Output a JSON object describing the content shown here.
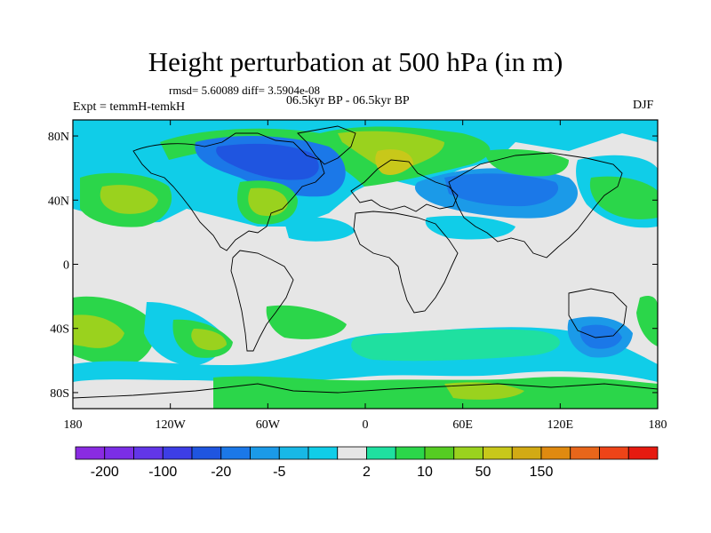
{
  "title": "Height perturbation at 500 hPa (in m)",
  "stats": "rmsd= 5.60089 diff= 3.5904e-08",
  "experiment": "Expt = temmH-temkH",
  "period": "06.5kyr BP - 06.5kyr BP",
  "season": "DJF",
  "map": {
    "type": "filled-contour",
    "projection": "cylindrical-equidistant",
    "lon_range": [
      -180,
      180
    ],
    "lat_range": [
      -90,
      90
    ],
    "y_ticks": [
      {
        "lat": 80,
        "label": "80N"
      },
      {
        "lat": 40,
        "label": "40N"
      },
      {
        "lat": 0,
        "label": "0"
      },
      {
        "lat": -40,
        "label": "40S"
      },
      {
        "lat": -80,
        "label": "80S"
      }
    ],
    "x_ticks": [
      {
        "lon": -180,
        "label": "180"
      },
      {
        "lon": -120,
        "label": "120W"
      },
      {
        "lon": -60,
        "label": "60W"
      },
      {
        "lon": 0,
        "label": "0"
      },
      {
        "lon": 60,
        "label": "60E"
      },
      {
        "lon": 120,
        "label": "120E"
      },
      {
        "lon": 180,
        "label": "180"
      }
    ]
  },
  "colorbar": {
    "colors": [
      "#8a2be2",
      "#7b2ee6",
      "#6236e8",
      "#3d3ee6",
      "#1f55e0",
      "#1b78e8",
      "#1b9ae8",
      "#18b8e6",
      "#10cde8",
      "#e6e6e6",
      "#1fe0a0",
      "#2bd64a",
      "#55cc22",
      "#9ad21e",
      "#c8c81a",
      "#d2aa14",
      "#e08a10",
      "#e8661a",
      "#ee4418",
      "#e61a10"
    ],
    "labels": [
      {
        "boundary": 1,
        "text": "-200"
      },
      {
        "boundary": 3,
        "text": "-100"
      },
      {
        "boundary": 5,
        "text": "-20"
      },
      {
        "boundary": 7,
        "text": "-5"
      },
      {
        "boundary": 10,
        "text": "2"
      },
      {
        "boundary": 12,
        "text": "10"
      },
      {
        "boundary": 14,
        "text": "50"
      },
      {
        "boundary": 16,
        "text": "150"
      }
    ]
  }
}
